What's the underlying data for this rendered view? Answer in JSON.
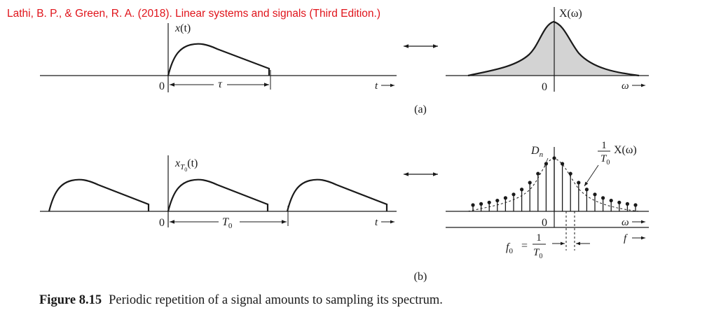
{
  "citation": "Lathi, B. P., & Green, R. A. (2018). Linear systems and signals (Third Edition.)",
  "panel_a": {
    "signal_label_x": "x",
    "signal_label_t": "(t)",
    "origin": "0",
    "tau": "τ",
    "t_axis": "t",
    "spectrum_label": "X(ω)",
    "spectrum_origin": "0",
    "omega_axis": "ω",
    "caption": "(a)"
  },
  "panel_b": {
    "signal_label_x": "x",
    "signal_label_sub": "T",
    "signal_label_sub0": "0",
    "signal_label_t": "(t)",
    "origin": "0",
    "period": "T",
    "period_sub": "0",
    "t_axis": "t",
    "dn_D": "D",
    "dn_n": "n",
    "envelope_num": "1",
    "envelope_den": "T",
    "envelope_den_sub": "0",
    "envelope_X": "X(ω)",
    "spectrum_origin": "0",
    "omega_axis": "ω",
    "f_axis": "f",
    "f0_f": "f",
    "f0_sub": "0",
    "f0_eq": "=",
    "f0_num": "1",
    "f0_den": "T",
    "f0_den_sub": "0",
    "caption": "(b)"
  },
  "figure": {
    "label": "Figure 8.15",
    "text": "Periodic repetition of a signal amounts to sampling its spectrum."
  }
}
